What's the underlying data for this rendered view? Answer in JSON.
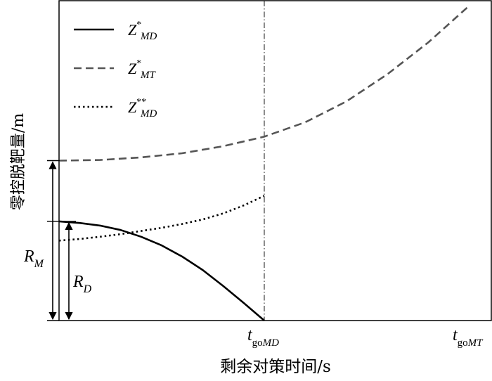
{
  "chart_data": {
    "type": "line",
    "ylabel": "零控脱靶量/m",
    "xlabel": "剩余对策时间/s",
    "x_ticks": [
      {
        "main": "t",
        "sub": "go",
        "sub_italic": "MD",
        "x": 1.0
      },
      {
        "main": "t",
        "sub": "go",
        "sub_italic": "MT",
        "x": 2.0
      }
    ],
    "xlim": [
      0,
      2.0
    ],
    "ylim": [
      0,
      1.0
    ],
    "grid": false,
    "legend_position": "top-left",
    "series": [
      {
        "name": "Z*MD",
        "name_main": "Z",
        "name_sup": "*",
        "name_sub": "MD",
        "style": "solid",
        "color": "#000000",
        "x": [
          0,
          0.1,
          0.2,
          0.3,
          0.4,
          0.5,
          0.6,
          0.7,
          0.8,
          0.9,
          1.0
        ],
        "y": [
          0.31,
          0.305,
          0.297,
          0.283,
          0.262,
          0.235,
          0.2,
          0.158,
          0.108,
          0.055,
          0.0
        ]
      },
      {
        "name": "Z*MT",
        "name_main": "Z",
        "name_sup": "*",
        "name_sub": "MT",
        "style": "dashed",
        "color": "#555555",
        "x": [
          0,
          0.2,
          0.4,
          0.6,
          0.8,
          1.0,
          1.2,
          1.4,
          1.6,
          1.8,
          2.0
        ],
        "y": [
          0.5,
          0.502,
          0.51,
          0.523,
          0.545,
          0.575,
          0.62,
          0.685,
          0.77,
          0.87,
          0.985
        ]
      },
      {
        "name": "Z**MD",
        "name_main": "Z",
        "name_sup": "**",
        "name_sub": "MD",
        "style": "dotted",
        "color": "#000000",
        "x": [
          0,
          0.1,
          0.2,
          0.3,
          0.4,
          0.5,
          0.6,
          0.7,
          0.8,
          0.9,
          1.0
        ],
        "y": [
          0.25,
          0.255,
          0.262,
          0.27,
          0.28,
          0.29,
          0.302,
          0.316,
          0.335,
          0.36,
          0.39
        ]
      }
    ],
    "annotations": [
      {
        "main": "R",
        "sub": "M",
        "y_from": 0,
        "y_to": 0.5
      },
      {
        "main": "R",
        "sub": "D",
        "y_from": 0,
        "y_to": 0.31
      }
    ],
    "vertical_marker_x": 1.0
  }
}
